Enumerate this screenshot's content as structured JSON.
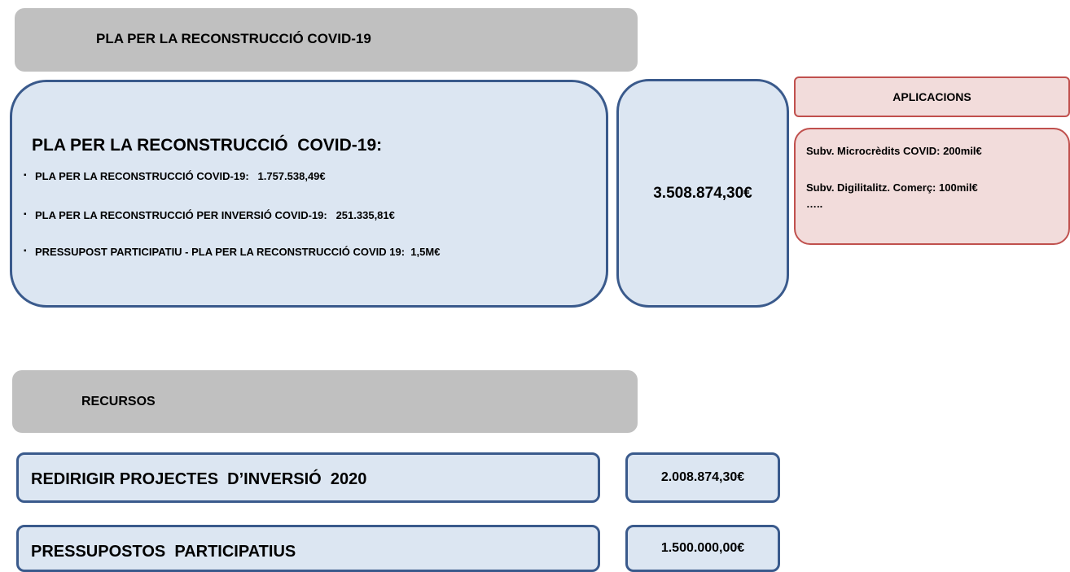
{
  "header": {
    "title": "PLA PER LA RECONSTRUCCIÓ COVID-19"
  },
  "plan": {
    "title": "PLA PER LA RECONSTRUCCIÓ  COVID-19:",
    "items": [
      "PLA PER LA RECONSTRUCCIÓ COVID-19:   1.757.538,49€",
      "PLA PER LA RECONSTRUCCIÓ PER INVERSIÓ COVID-19:   251.335,81€",
      "PRESSUPOST PARTICIPATIU - PLA PER LA RECONSTRUCCIÓ COVID 19:  1,5M€"
    ],
    "total": "3.508.874,30€"
  },
  "applications": {
    "title": "APLICACIONS",
    "items": [
      "Subv. Microcrèdits COVID: 200mil€",
      "Subv. Digilitalitz. Comerç: 100mil€",
      "….."
    ]
  },
  "resources": {
    "title": "RECURSOS",
    "rows": [
      {
        "label": "REDIRIGIR PROJECTES  D’INVERSIÓ  2020",
        "amount": "2.008.874,30€"
      },
      {
        "label": "PRESSUPOSTOS  PARTICIPATIUS",
        "amount": "1.500.000,00€"
      }
    ]
  }
}
